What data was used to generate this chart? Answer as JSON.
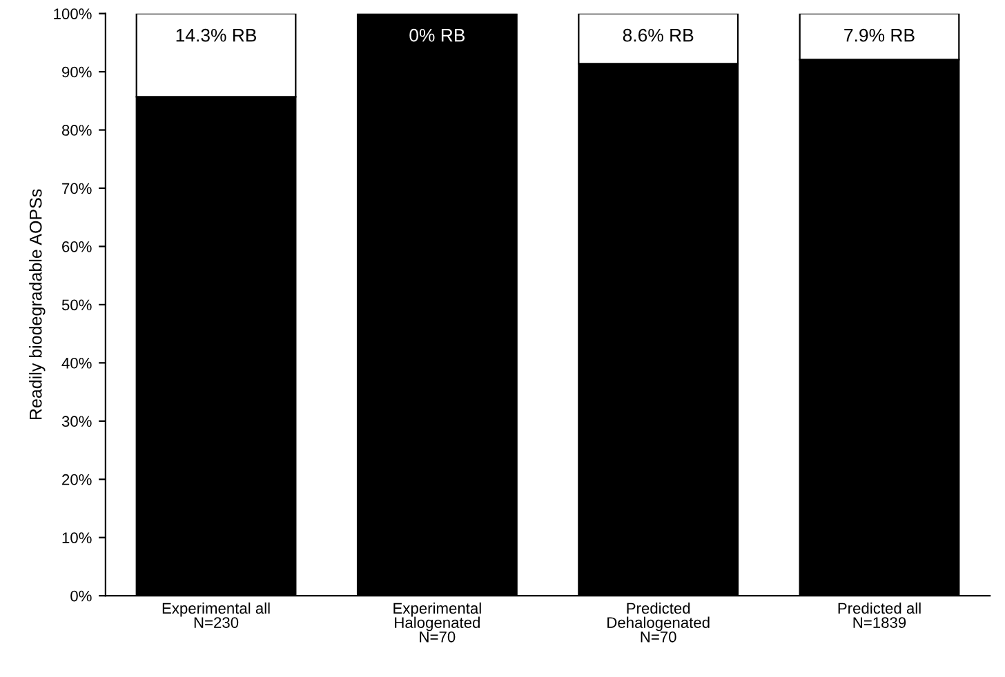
{
  "chart_data": {
    "type": "bar",
    "stacked": true,
    "ylabel": "Readily biodegradable AOPSs",
    "categories": [
      "Experimental all\nN=230",
      "Experimental\nHalogenated\nN=70",
      "Predicted\nDehalogenated\nN=70",
      "Predicted all\nN=1839"
    ],
    "series": [
      {
        "color": "#000000",
        "values": [
          85.7,
          100,
          91.4,
          92.1
        ]
      },
      {
        "color": "#ffffff",
        "values": [
          14.3,
          0,
          8.6,
          7.9
        ],
        "value_labels": [
          "14.3% RB",
          "0% RB",
          "8.6% RB",
          "7.9% RB"
        ]
      }
    ],
    "ylim": [
      0,
      100
    ],
    "yticks": [
      {
        "value": 0,
        "label": "0%"
      },
      {
        "value": 10,
        "label": "10%"
      },
      {
        "value": 20,
        "label": "20%"
      },
      {
        "value": 30,
        "label": "30%"
      },
      {
        "value": 40,
        "label": "40%"
      },
      {
        "value": 50,
        "label": "50%"
      },
      {
        "value": 60,
        "label": "60%"
      },
      {
        "value": 70,
        "label": "70%"
      },
      {
        "value": 80,
        "label": "80%"
      },
      {
        "value": 90,
        "label": "90%"
      },
      {
        "value": 100,
        "label": "100%"
      }
    ],
    "grid": false
  }
}
